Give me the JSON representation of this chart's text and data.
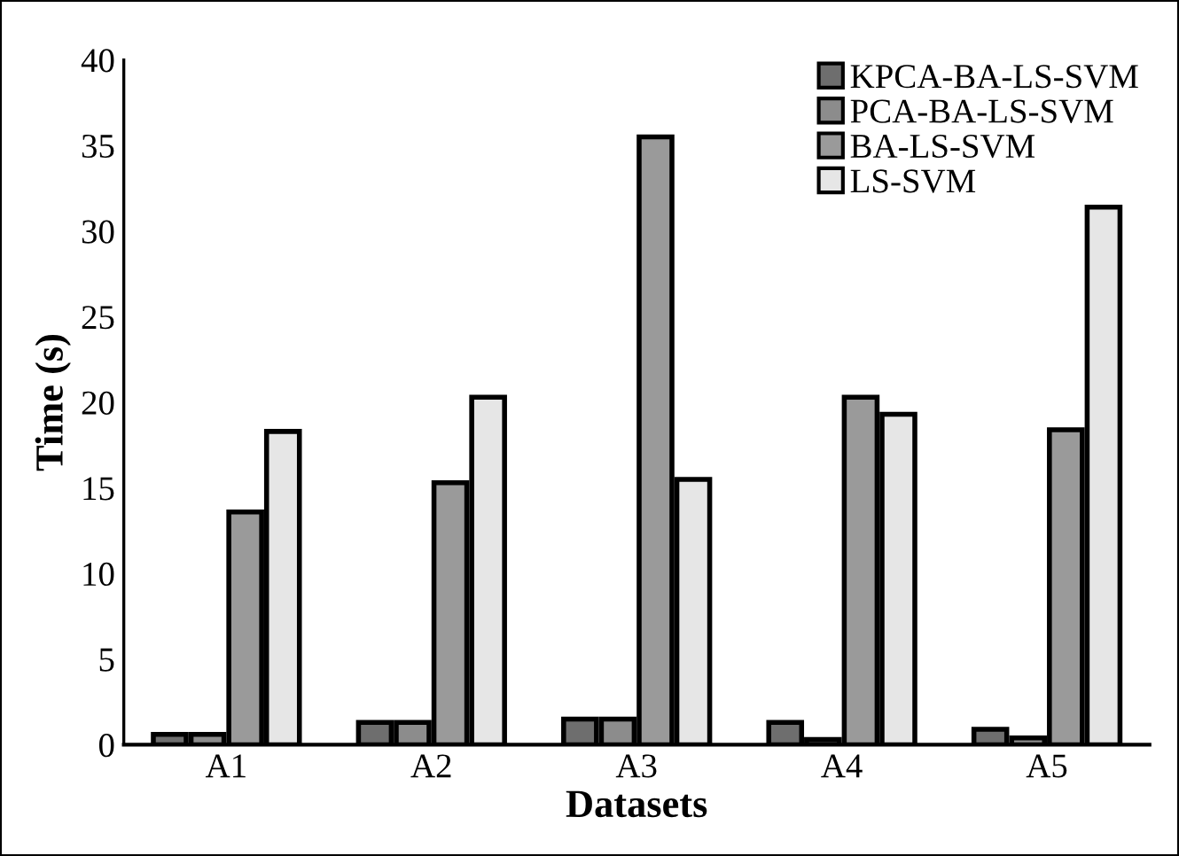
{
  "chart_data": {
    "type": "bar",
    "xlabel": "Datasets",
    "ylabel": "Time (s)",
    "categories": [
      "A1",
      "A2",
      "A3",
      "A4",
      "A5"
    ],
    "series": [
      {
        "name": "KPCA-BA-LS-SVM",
        "color": "#6e6e6e",
        "values": [
          0.6,
          1.3,
          1.5,
          1.3,
          0.9
        ]
      },
      {
        "name": "PCA-BA-LS-SVM",
        "color": "#8c8c8c",
        "values": [
          0.6,
          1.3,
          1.5,
          0.3,
          0.4
        ]
      },
      {
        "name": "BA-LS-SVM",
        "color": "#9a9a9a",
        "values": [
          13.6,
          15.3,
          35.5,
          20.3,
          18.4
        ]
      },
      {
        "name": "LS-SVM",
        "color": "#e6e6e6",
        "values": [
          18.3,
          20.3,
          15.5,
          19.3,
          31.4
        ]
      }
    ],
    "ylim": [
      0,
      40
    ],
    "yticks": [
      0,
      5,
      10,
      15,
      20,
      25,
      30,
      35,
      40
    ],
    "grid": false,
    "legend": "top right"
  }
}
